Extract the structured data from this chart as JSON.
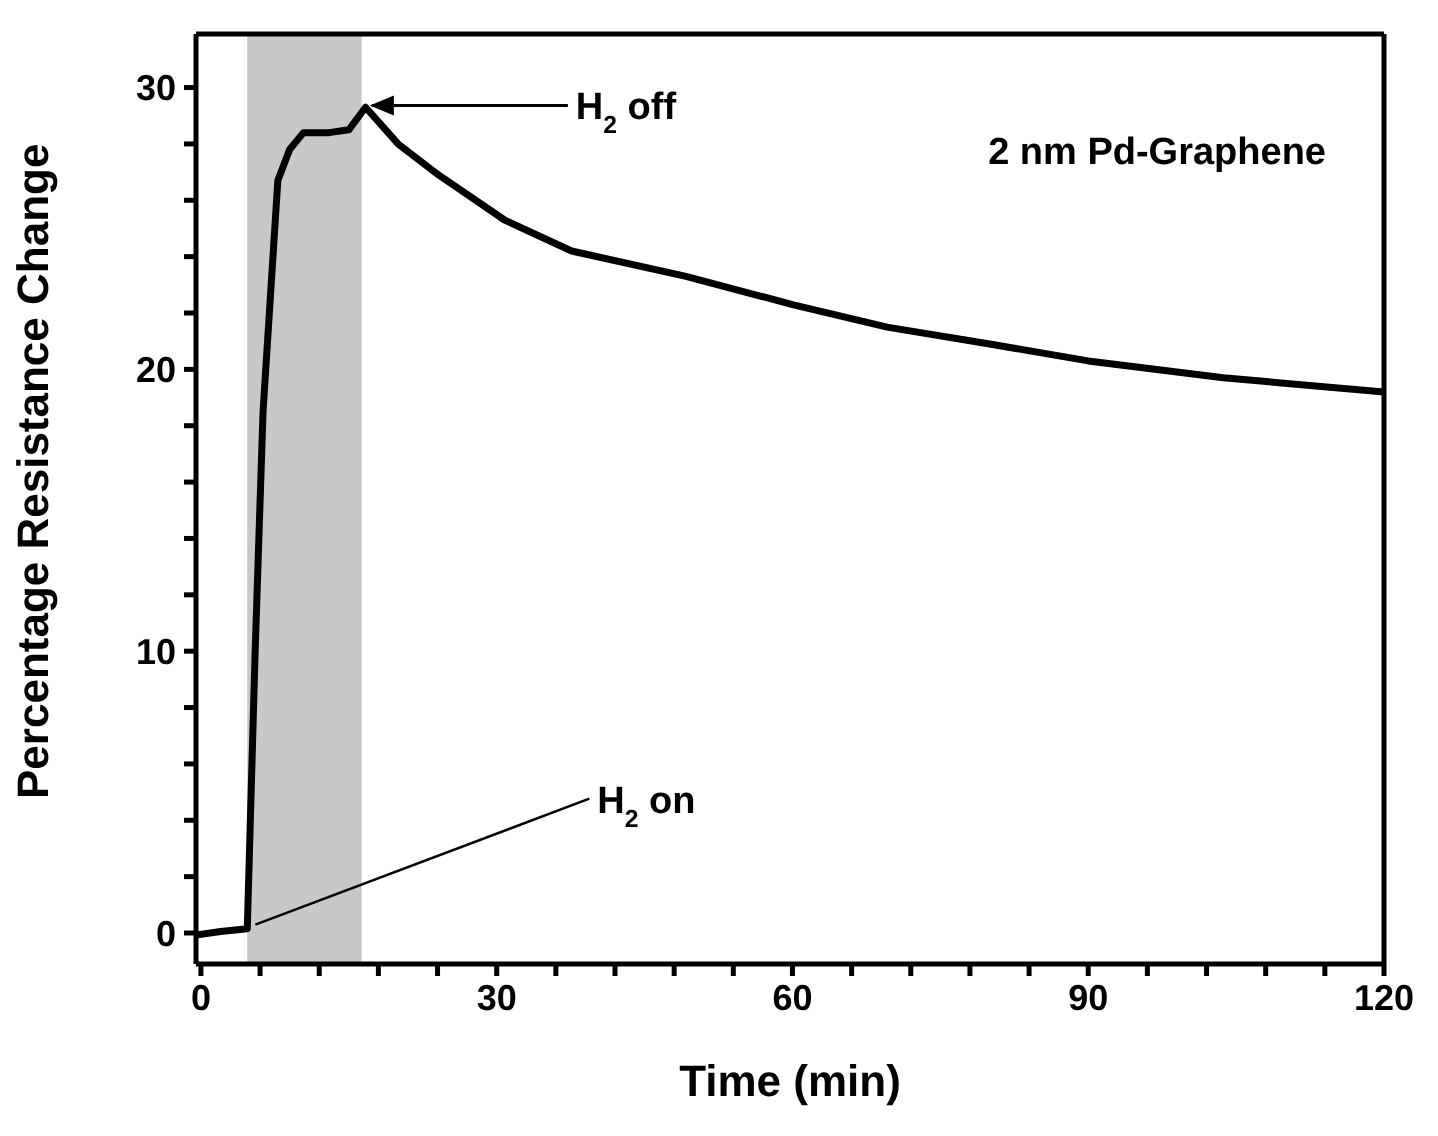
{
  "chart_data": {
    "type": "line",
    "xlabel": "Time (min)",
    "ylabel": "Percentage Resistance Change",
    "x": [
      -0.5,
      2,
      4.7,
      5.5,
      6.3,
      7.8,
      9,
      10.4,
      13,
      15,
      16.7,
      20,
      24.1,
      30.8,
      37.6,
      49.2,
      60,
      69.6,
      80,
      90,
      103.7,
      120
    ],
    "series": [
      {
        "color": "#000000",
        "values": [
          -0.07,
          0.05,
          0.15,
          10,
          18.5,
          26.7,
          27.8,
          28.4,
          28.4,
          28.5,
          29.3,
          28.0,
          26.9,
          25.3,
          24.2,
          23.3,
          22.3,
          21.5,
          20.9,
          20.3,
          19.7,
          19.2
        ]
      }
    ],
    "xlim": [
      -0.5,
      120
    ],
    "ylim": [
      -1.1,
      31.9
    ],
    "xticks": [
      0,
      {
        "value": 6,
        "label": null
      },
      {
        "value": 12,
        "label": null
      },
      {
        "value": 18,
        "label": null
      },
      {
        "value": 24,
        "label": null
      },
      30,
      {
        "value": 36,
        "label": null
      },
      {
        "value": 42,
        "label": null
      },
      {
        "value": 48,
        "label": null
      },
      {
        "value": 54,
        "label": null
      },
      60,
      {
        "value": 66,
        "label": null
      },
      {
        "value": 72,
        "label": null
      },
      {
        "value": 78,
        "label": null
      },
      {
        "value": 84,
        "label": null
      },
      90,
      {
        "value": 96,
        "label": null
      },
      {
        "value": 102,
        "label": null
      },
      {
        "value": 108,
        "label": null
      },
      {
        "value": 114,
        "label": null
      },
      120
    ],
    "yticks": [
      0,
      {
        "value": 2,
        "label": null
      },
      {
        "value": 4,
        "label": null
      },
      {
        "value": 6,
        "label": null
      },
      {
        "value": 8,
        "label": null
      },
      10,
      {
        "value": 12,
        "label": null
      },
      {
        "value": 14,
        "label": null
      },
      {
        "value": 16,
        "label": null
      },
      {
        "value": 18,
        "label": null
      },
      20,
      {
        "value": 22,
        "label": null
      },
      {
        "value": 24,
        "label": null
      },
      {
        "value": 26,
        "label": null
      },
      {
        "value": 28,
        "label": null
      },
      30
    ],
    "bands": [
      {
        "axis": "x",
        "from": 4.7,
        "to": 16.3,
        "color": "#c8c8c8"
      }
    ],
    "annotations": [
      {
        "text": "H$_{2}$ off",
        "x": 16.7,
        "y": 29.3
      },
      {
        "text": "H$_{2}$ on",
        "x": 4.7,
        "y": 0.15
      },
      "2 nm Pd-Graphene"
    ],
    "marker": "none",
    "line_style": "solid"
  }
}
